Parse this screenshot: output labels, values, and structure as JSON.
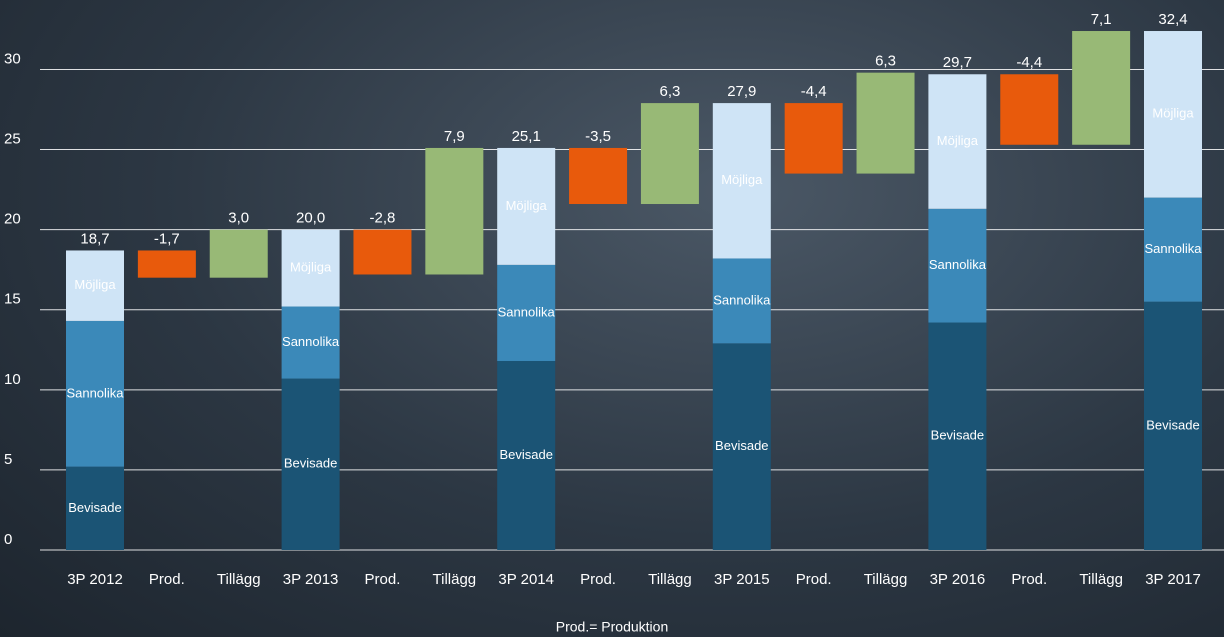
{
  "chart_data": {
    "type": "waterfall",
    "categories": [
      "3P 2012",
      "Prod.",
      "Tillägg",
      "3P 2013",
      "Prod.",
      "Tillägg",
      "3P 2014",
      "Prod.",
      "Tillägg",
      "3P 2015",
      "Prod.",
      "Tillägg",
      "3P 2016",
      "Prod.",
      "Tillägg",
      "3P 2017"
    ],
    "series": [
      {
        "name": "Bevisade",
        "color": "#1b5475",
        "values": [
          5.2,
          null,
          null,
          10.7,
          null,
          null,
          11.8,
          null,
          null,
          12.9,
          null,
          null,
          14.2,
          null,
          null,
          15.5
        ]
      },
      {
        "name": "Sannolika",
        "color": "#3b89b9",
        "values": [
          9.1,
          null,
          null,
          4.5,
          null,
          null,
          6.0,
          null,
          null,
          5.3,
          null,
          null,
          7.1,
          null,
          null,
          6.5
        ]
      },
      {
        "name": "Möjliga",
        "color": "#cfe4f6",
        "values": [
          4.4,
          null,
          null,
          4.8,
          null,
          null,
          7.3,
          null,
          null,
          9.7,
          null,
          null,
          8.4,
          null,
          null,
          10.4
        ]
      }
    ],
    "totals": {
      "values": [
        18.7,
        null,
        null,
        20.0,
        null,
        null,
        25.1,
        null,
        null,
        27.9,
        null,
        null,
        29.7,
        null,
        null,
        32.4
      ],
      "value_labels": [
        "18,7",
        null,
        null,
        "20,0",
        null,
        null,
        "25,1",
        null,
        null,
        "27,9",
        null,
        null,
        "29,7",
        null,
        null,
        "32,4"
      ]
    },
    "changes": {
      "negative_color": "#e85a0c",
      "positive_color": "#98b976",
      "values": [
        null,
        -1.7,
        3.0,
        null,
        -2.8,
        7.9,
        null,
        -3.5,
        6.3,
        null,
        -4.4,
        6.3,
        null,
        -4.4,
        7.1,
        null
      ],
      "value_labels": [
        null,
        "-1,7",
        "3,0",
        null,
        "-2,8",
        "7,9",
        null,
        "-3,5",
        "6,3",
        null,
        "-4,4",
        "6,3",
        null,
        "-4,4",
        "7,1",
        null
      ]
    },
    "ylim": [
      0,
      33.4
    ],
    "yticks": [
      0,
      5,
      10,
      15,
      20,
      25,
      30
    ],
    "grid": true,
    "footnote": "Prod.= Produktion"
  }
}
